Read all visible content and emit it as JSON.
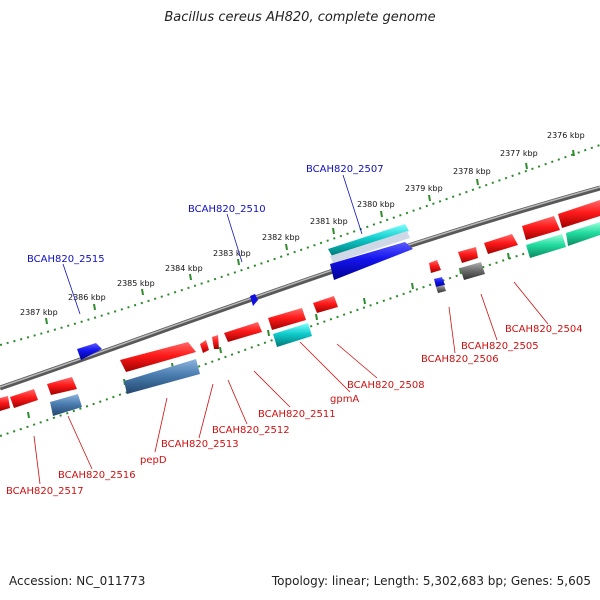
{
  "title": "Bacillus cereus AH820, complete genome",
  "footer": {
    "accession": "Accession: NC_011773",
    "summary": "Topology: linear; Length: 5,302,683 bp; Genes: 5,605"
  },
  "colors": {
    "backbone": "#808080",
    "tick_ruler": "#2e8b2e",
    "gene_red": "#e01010",
    "gene_blue": "#1010e0",
    "gene_cyan": "#10c8c8",
    "gene_steel": "#4a7db0",
    "gene_green": "#20d8a0",
    "gene_grey": "#6a6a6a",
    "label_forward": "#1010c0",
    "label_reverse": "#d01010"
  },
  "kbp_labels": [
    "2376 kbp",
    "2377 kbp",
    "2378 kbp",
    "2379 kbp",
    "2380 kbp",
    "2381 kbp",
    "2382 kbp",
    "2383 kbp",
    "2384 kbp",
    "2385 kbp",
    "2386 kbp",
    "2387 kbp"
  ],
  "forward_gene_labels": [
    "BCAH820_2507",
    "BCAH820_2510",
    "BCAH820_2515"
  ],
  "reverse_gene_labels": [
    "BCAH820_2504",
    "BCAH820_2505",
    "BCAH820_2506",
    "BCAH820_2508",
    "gpmA",
    "BCAH820_2511",
    "BCAH820_2512",
    "BCAH820_2513",
    "pepD",
    "BCAH820_2516",
    "BCAH820_2517"
  ]
}
